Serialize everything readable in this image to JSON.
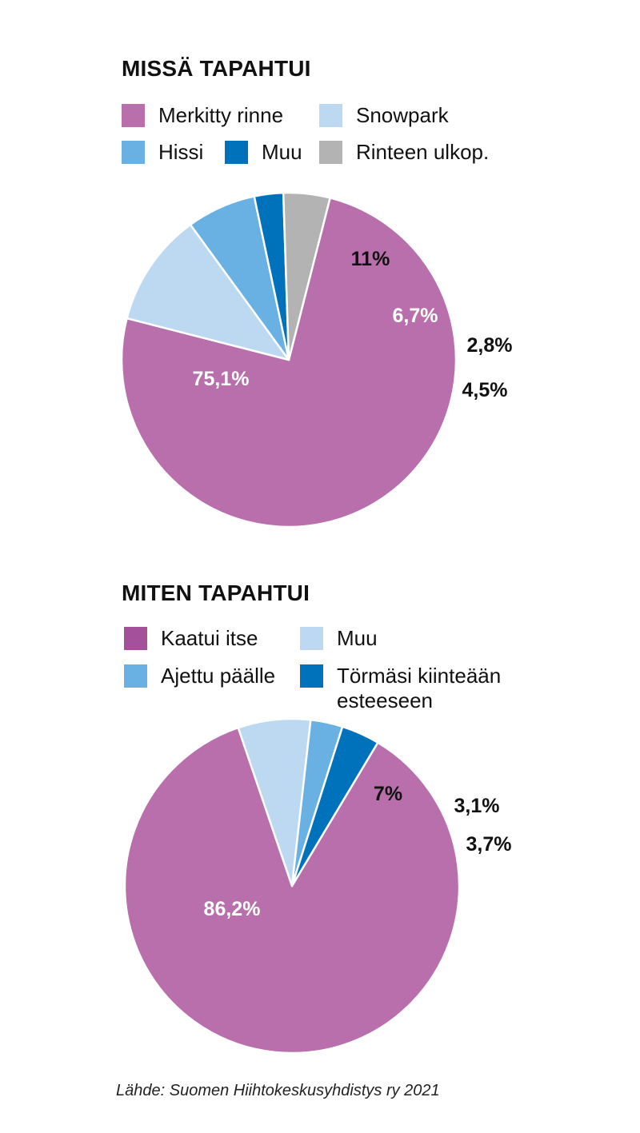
{
  "chart_data": [
    {
      "type": "pie",
      "title": "MISSÄ TAPAHTUI",
      "legend": "top",
      "slices": [
        {
          "name": "Merkitty rinne",
          "value": 75.1,
          "label": "75,1%",
          "color": "#b86fab",
          "label_color": "#ffffff"
        },
        {
          "name": "Snowpark",
          "value": 11,
          "label": "11%",
          "color": "#bdd8f1",
          "label_color": "#111111"
        },
        {
          "name": "Hissi",
          "value": 6.7,
          "label": "6,7%",
          "color": "#6ab1e3",
          "label_color": "#ffffff"
        },
        {
          "name": "Muu",
          "value": 2.8,
          "label": "2,8%",
          "color": "#0072bb",
          "label_color": "#111111"
        },
        {
          "name": "Rinteen ulkop.",
          "value": 4.5,
          "label": "4,5%",
          "color": "#b3b3b3",
          "label_color": "#111111"
        }
      ]
    },
    {
      "type": "pie",
      "title": "MITEN TAPAHTUI",
      "legend": "top",
      "slices": [
        {
          "name": "Kaatui itse",
          "value": 86.2,
          "label": "86,2%",
          "color": "#b86fab",
          "legend_color": "#a4509b",
          "label_color": "#ffffff"
        },
        {
          "name": "Muu",
          "value": 7,
          "label": "7%",
          "color": "#bdd8f1",
          "label_color": "#111111"
        },
        {
          "name": "Ajettu päälle",
          "value": 3.1,
          "label": "3,1%",
          "color": "#6ab1e3",
          "label_color": "#111111"
        },
        {
          "name": "Törmäsi kiinteään\nesteeseen",
          "value": 3.7,
          "label": "3,7%",
          "color": "#0072bb",
          "label_color": "#111111"
        }
      ]
    }
  ],
  "source": "Lähde: Suomen Hiihtokeskusyhdistys ry 2021"
}
